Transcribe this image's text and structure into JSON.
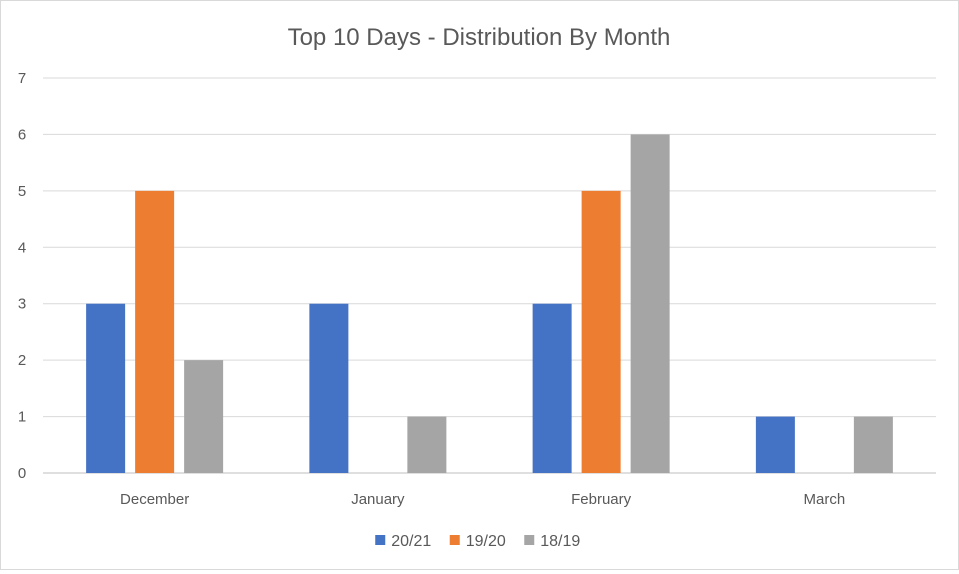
{
  "chart_data": {
    "type": "bar",
    "title": "Top 10 Days - Distribution By Month",
    "xlabel": "",
    "ylabel": "",
    "categories": [
      "December",
      "January",
      "February",
      "March"
    ],
    "series": [
      {
        "name": "20/21",
        "values": [
          3,
          3,
          3,
          1
        ],
        "color": "#4472c4"
      },
      {
        "name": "19/20",
        "values": [
          5,
          0,
          5,
          0
        ],
        "color": "#ed7d31"
      },
      {
        "name": "18/19",
        "values": [
          2,
          1,
          6,
          1
        ],
        "color": "#a5a5a5"
      }
    ],
    "ylim": [
      0,
      7
    ],
    "yticks": [
      "0",
      "1",
      "2",
      "3",
      "4",
      "5",
      "6",
      "7"
    ],
    "grid": true,
    "legend_position": "bottom"
  }
}
